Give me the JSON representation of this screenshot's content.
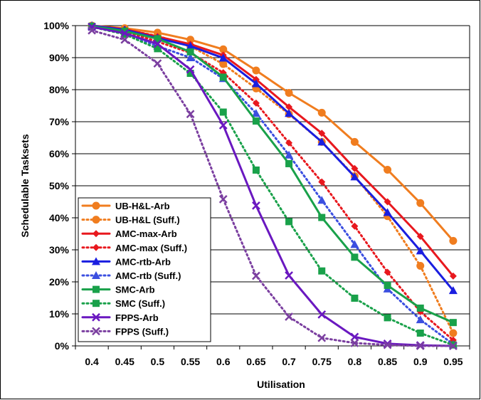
{
  "chart_data": {
    "type": "line",
    "xlabel": "Utilisation",
    "ylabel": "Schedulable Tasksets",
    "x": [
      0.4,
      0.45,
      0.5,
      0.55,
      0.6,
      0.65,
      0.7,
      0.75,
      0.8,
      0.85,
      0.9,
      0.95
    ],
    "x_tick_labels": [
      "0.4",
      "0.45",
      "0.5",
      "0.55",
      "0.6",
      "0.65",
      "0.7",
      "0.75",
      "0.8",
      "0.85",
      "0.9",
      "0.95"
    ],
    "y_tick_labels": [
      "0%",
      "10%",
      "20%",
      "30%",
      "40%",
      "50%",
      "60%",
      "70%",
      "80%",
      "90%",
      "100%"
    ],
    "ylim": [
      0,
      100
    ],
    "grid": "horizontal",
    "legend_position": "bottom-left",
    "series": [
      {
        "name": "UB-H&L-Arb",
        "color": "#F07D1F",
        "dash": "solid",
        "marker": "circle",
        "values": [
          100,
          99.2,
          97.8,
          95.6,
          92.6,
          86,
          79,
          72.8,
          63.7,
          55,
          44.6,
          32.8
        ]
      },
      {
        "name": "UB-H&L (Suff.)",
        "color": "#F07D1F",
        "dash": "dotted",
        "marker": "circle",
        "values": [
          100,
          98.8,
          96.8,
          93.6,
          88,
          80.4,
          72.4,
          63.7,
          53,
          40.5,
          25,
          4
        ]
      },
      {
        "name": "AMC-max-Arb",
        "color": "#E8181E",
        "dash": "solid",
        "marker": "diamond",
        "values": [
          100,
          98.9,
          96.6,
          94.2,
          90.8,
          83.2,
          74.6,
          66.4,
          55.4,
          45,
          34.2,
          21.8
        ]
      },
      {
        "name": "AMC-max (Suff.)",
        "color": "#E8181E",
        "dash": "dotted",
        "marker": "diamond",
        "values": [
          100,
          98.2,
          95,
          91.5,
          85.3,
          75.8,
          63.4,
          51.2,
          37.4,
          23,
          10.7,
          1.8
        ]
      },
      {
        "name": "AMC-rtb-Arb",
        "color": "#1A1EE0",
        "dash": "solid",
        "marker": "triangle",
        "values": [
          100,
          98.7,
          96.1,
          93.6,
          89.9,
          81.9,
          72.6,
          63.7,
          52.8,
          41.7,
          29.7,
          17.3
        ]
      },
      {
        "name": "AMC-rtb (Suff.)",
        "color": "#3B4FE0",
        "dash": "dotted",
        "marker": "triangle",
        "values": [
          100,
          97.6,
          93.6,
          90,
          83.5,
          72.6,
          59.6,
          45.5,
          31.7,
          17.8,
          8.2,
          0.5
        ]
      },
      {
        "name": "SMC-Arb",
        "color": "#19A14A",
        "dash": "solid",
        "marker": "square",
        "values": [
          99.8,
          98.3,
          95.9,
          91.8,
          83.9,
          70.2,
          56.9,
          40.1,
          27.7,
          18.9,
          11.8,
          7.3
        ]
      },
      {
        "name": "SMC (Suff.)",
        "color": "#19A14A",
        "dash": "dotted",
        "marker": "square",
        "values": [
          99.6,
          97.3,
          92.8,
          85.1,
          73,
          54.9,
          38.8,
          23.4,
          14.9,
          8.8,
          4,
          0.3
        ]
      },
      {
        "name": "FPPS-Arb",
        "color": "#6A18C0",
        "dash": "solid",
        "marker": "x",
        "values": [
          99.6,
          97.6,
          94.3,
          86.3,
          68.9,
          43.8,
          22,
          9.8,
          2.8,
          0.7,
          0.2,
          0
        ]
      },
      {
        "name": "FPPS (Suff.)",
        "color": "#7B3FA0",
        "dash": "dotted",
        "marker": "x",
        "values": [
          98.5,
          95.6,
          88.2,
          72.4,
          45.8,
          21.9,
          9.1,
          2.5,
          0.9,
          0.3,
          0,
          0
        ]
      }
    ]
  }
}
